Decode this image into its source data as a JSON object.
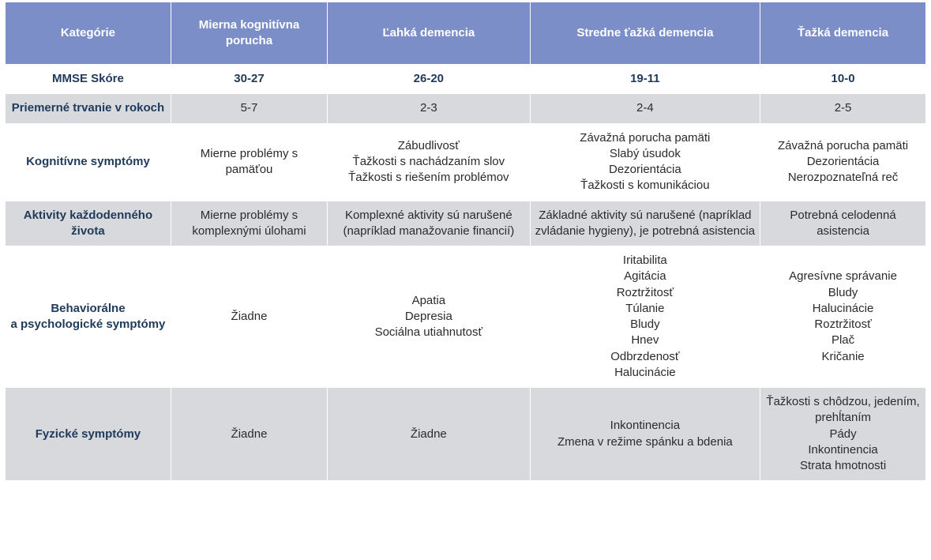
{
  "table": {
    "type": "table",
    "colors": {
      "header_bg": "#7b8ec7",
      "header_text": "#ffffff",
      "row_white_bg": "#ffffff",
      "row_grey_bg": "#d7d9dd",
      "label_text": "#1f3a5a",
      "body_text": "#2b2b2b",
      "border": "#ffffff"
    },
    "font_family": "Arial",
    "base_fontsize_pt": 11,
    "column_widths_pct": [
      18,
      17,
      22,
      25,
      18
    ],
    "headers": [
      "Kategórie",
      "Mierna kognitívna porucha",
      "Ľahká demencia",
      "Stredne ťažká demencia",
      "Ťažká demencia"
    ],
    "rows": [
      {
        "bg": "white",
        "bold_all": true,
        "label": "MMSE Skóre",
        "cells": [
          "30-27",
          "26-20",
          "19-11",
          "10-0"
        ]
      },
      {
        "bg": "grey",
        "label": "Priemerné trvanie v rokoch",
        "cells": [
          "5-7",
          "2-3",
          "2-4",
          "2-5"
        ]
      },
      {
        "bg": "white",
        "label": "Kognitívne symptómy",
        "cells": [
          "Mierne problémy s pamäťou",
          "Zábudlivosť\nŤažkosti s nachádzaním slov\nŤažkosti s riešením problémov",
          "Závažná porucha pamäti\nSlabý úsudok\nDezorientácia\nŤažkosti s komunikáciou",
          "Závažná porucha pamäti\nDezorientácia\nNerozpoznateľná reč"
        ]
      },
      {
        "bg": "grey",
        "label": "Aktivity každodenného života",
        "cells": [
          "Mierne problémy s komplexnými úlohami",
          "Komplexné aktivity sú narušené (napríklad manažovanie financií)",
          "Základné aktivity sú narušené (napríklad zvládanie hygieny), je potrebná asistencia",
          "Potrebná celodenná asistencia"
        ]
      },
      {
        "bg": "white",
        "label": "Behaviorálne\na psychologické symptómy",
        "cells": [
          "Žiadne",
          "Apatia\nDepresia\nSociálna utiahnutosť",
          "Iritabilita\nAgitácia\nRoztržitosť\nTúlanie\nBludy\nHnev\nOdbrzdenosť\nHalucinácie",
          "Agresívne správanie\nBludy\nHalucinácie\nRoztržitosť\nPlač\nKričanie"
        ]
      },
      {
        "bg": "grey",
        "label": "Fyzické symptómy",
        "cells": [
          "Žiadne",
          "Žiadne",
          "Inkontinencia\nZmena v režime spánku a bdenia",
          "Ťažkosti s chôdzou, jedením, prehĺtaním\nPády\nInkontinencia\nStrata hmotnosti"
        ]
      }
    ]
  }
}
